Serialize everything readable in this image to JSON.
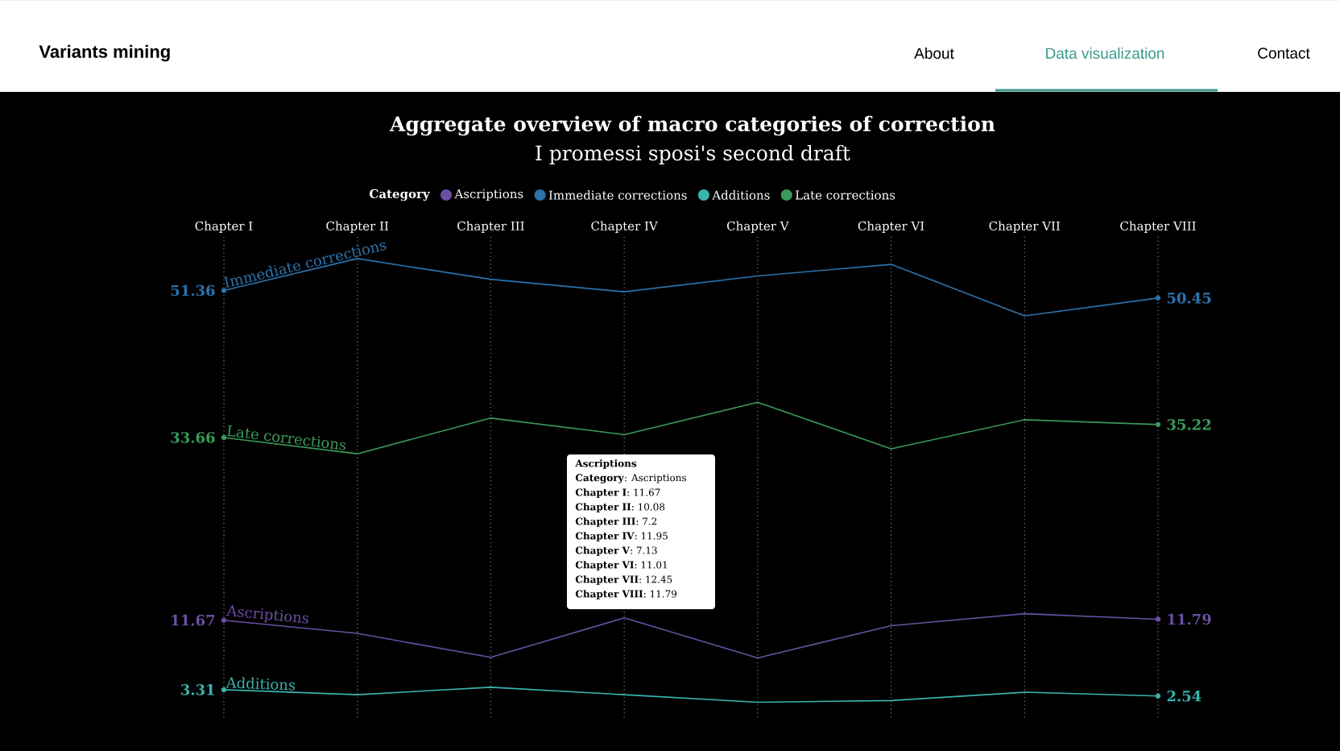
{
  "chart_data": {
    "type": "line",
    "title": "Aggregate overview of macro categories of correction",
    "subtitle": "I promessi sposi's second draft",
    "legend_title": "Category",
    "categories": [
      "Chapter I",
      "Chapter II",
      "Chapter III",
      "Chapter IV",
      "Chapter V",
      "Chapter VI",
      "Chapter VII",
      "Chapter VIII"
    ],
    "series": [
      {
        "name": "Ascriptions",
        "color": "#6a4fa3",
        "values": [
          11.67,
          10.08,
          7.2,
          11.95,
          7.13,
          11.01,
          12.45,
          11.79
        ],
        "value_labels": [
          "11.67",
          null,
          null,
          null,
          null,
          null,
          null,
          "11.79"
        ]
      },
      {
        "name": "Immediate corrections",
        "color": "#2c73ad",
        "values": [
          51.36,
          55.2,
          52.7,
          51.2,
          53.1,
          54.5,
          48.3,
          50.45
        ],
        "value_labels": [
          "51.36",
          null,
          null,
          null,
          null,
          null,
          null,
          "50.45"
        ]
      },
      {
        "name": "Additions",
        "color": "#3ab3ad",
        "values": [
          3.31,
          2.7,
          3.6,
          2.7,
          1.8,
          2.0,
          3.0,
          2.54
        ],
        "value_labels": [
          "3.31",
          null,
          null,
          null,
          null,
          null,
          null,
          "2.54"
        ]
      },
      {
        "name": "Late corrections",
        "color": "#3a9a5a",
        "values": [
          33.66,
          31.7,
          36.0,
          34.0,
          37.9,
          32.3,
          35.8,
          35.22
        ],
        "value_labels": [
          "33.66",
          null,
          null,
          null,
          null,
          null,
          null,
          "35.22"
        ]
      }
    ],
    "ylim": [
      0,
      58
    ],
    "grid": "x",
    "legend": "top",
    "annotations": [
      "Variants mining",
      "About",
      "Data visualization",
      "Contact",
      "Ascriptions",
      "**Category**: Ascriptions",
      "**Chapter I**: 11.67",
      "**Chapter II**: 10.08",
      "**Chapter III**: 7.2",
      "**Chapter IV**: 11.95",
      "**Chapter V**: 7.13",
      "**Chapter VI**: 11.01",
      "**Chapter VII**: 12.45",
      "**Chapter VIII**: 11.79"
    ]
  }
}
